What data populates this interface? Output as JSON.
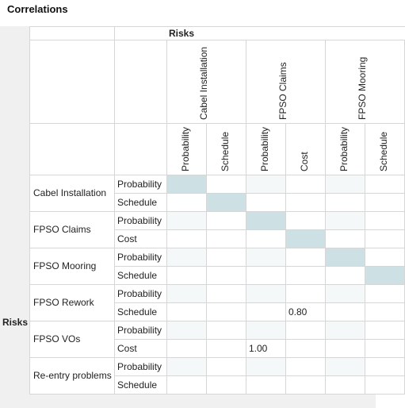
{
  "title": "Correlations",
  "col_header": "Risks",
  "row_header": "Risks",
  "risks": [
    {
      "name": "Cabel Installation",
      "items": [
        "Probability",
        "Schedule"
      ]
    },
    {
      "name": "FPSO Claims",
      "items": [
        "Probability",
        "Cost"
      ]
    },
    {
      "name": "FPSO Mooring",
      "items": [
        "Probability",
        "Schedule"
      ]
    },
    {
      "name": "FPSO Rework",
      "items": [
        "Probability",
        "Schedule"
      ]
    },
    {
      "name": "FPSO VOs",
      "items": [
        "Probability",
        "Cost"
      ]
    },
    {
      "name": "Re-entry problems",
      "items": [
        "Probability",
        "Schedule"
      ]
    }
  ],
  "values": {
    "fpso_rework_schedule_vs_fpso_claims_cost": "0.80",
    "fpso_vos_cost_vs_fpso_claims_probability": "1.00"
  },
  "colors": {
    "diagonal": "#cde0e4",
    "header_bg": "#f0f0f0",
    "grid": "#d6d6d6"
  }
}
